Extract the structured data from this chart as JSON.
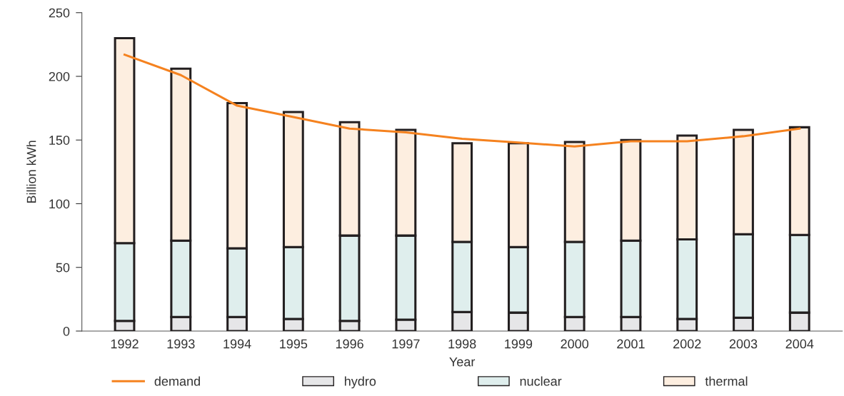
{
  "chart_data": {
    "type": "bar",
    "stacked": true,
    "xlabel": "Year",
    "ylabel": "Billion kWh",
    "categories": [
      "1992",
      "1993",
      "1994",
      "1995",
      "1996",
      "1997",
      "1998",
      "1999",
      "2000",
      "2001",
      "2002",
      "2003",
      "2004"
    ],
    "series": [
      {
        "name": "demand",
        "type": "line",
        "color": "#f5821f",
        "values": [
          217,
          201,
          177,
          168,
          159,
          156,
          151,
          148,
          145,
          149,
          149,
          153,
          159
        ]
      },
      {
        "name": "hydro",
        "color": "#e6e6e8",
        "values": [
          8,
          11,
          11,
          9.5,
          8,
          9,
          15,
          14.5,
          11,
          11,
          9.5,
          10.5,
          14.5
        ]
      },
      {
        "name": "nuclear",
        "color": "#dfeeed",
        "values": [
          61,
          60,
          54,
          56.5,
          67,
          66,
          55,
          51.5,
          59,
          60,
          62.5,
          65.5,
          61
        ]
      },
      {
        "name": "thermal",
        "color": "#fdeee0",
        "values": [
          161,
          135,
          114,
          106,
          89,
          83,
          77.5,
          81.5,
          78.5,
          79,
          81.5,
          82,
          84.5
        ]
      }
    ],
    "ylim": [
      0,
      250
    ],
    "yticks": [
      0,
      50,
      100,
      150,
      200,
      250
    ],
    "grid": false,
    "legend": "bottom"
  }
}
